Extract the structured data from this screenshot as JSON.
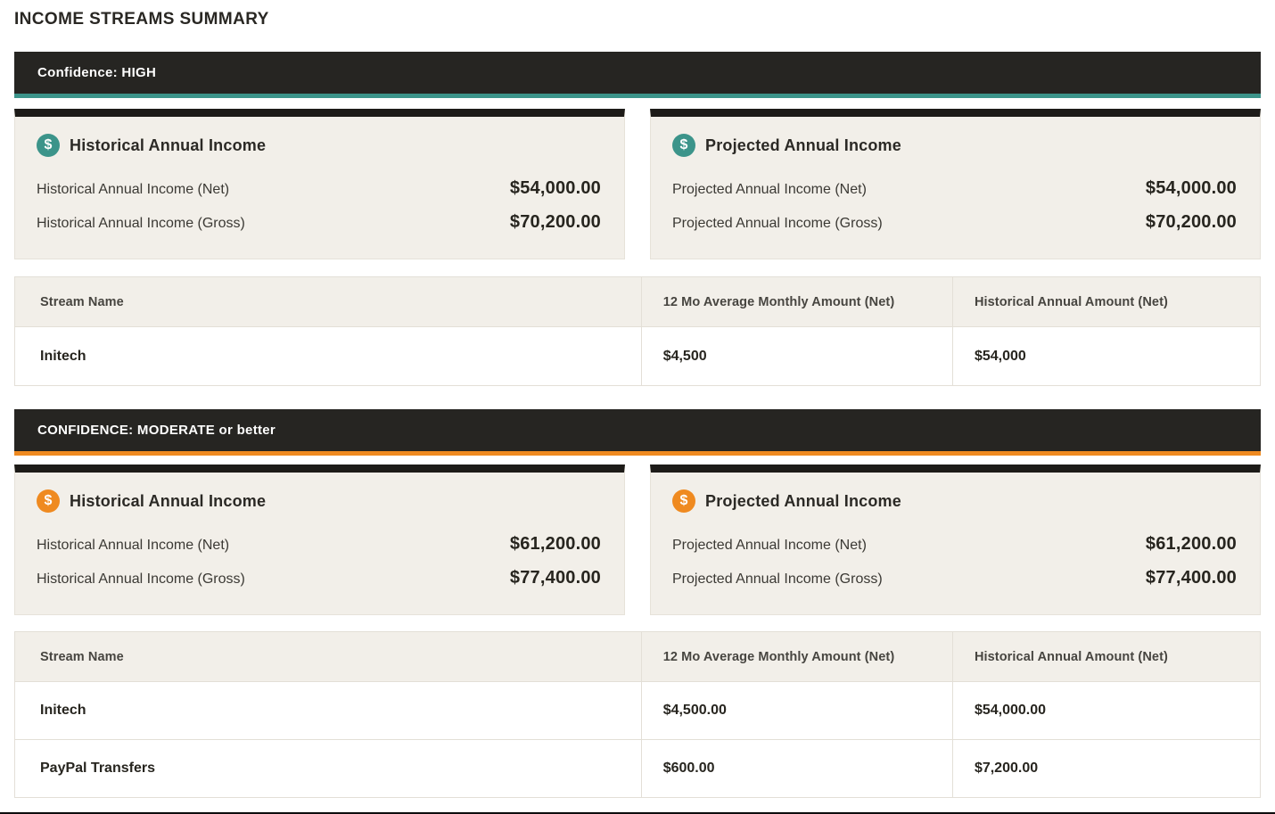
{
  "page": {
    "title": "INCOME STREAMS SUMMARY"
  },
  "icons": {
    "dollar_glyph": "$"
  },
  "colors": {
    "high_accent": "#3c948a",
    "moderate_accent": "#ef8a20",
    "banner_bg": "#262522",
    "card_bg": "#f2efe9",
    "card_top_strip": "#1d1b18",
    "bottom_bar": "#0d0d0d"
  },
  "sections": [
    {
      "confidence_label": "Confidence: HIGH",
      "accent_color": "#3c948a",
      "cards": [
        {
          "title": "Historical Annual Income",
          "rows": [
            {
              "label": "Historical Annual Income (Net)",
              "value": "$54,000.00"
            },
            {
              "label": "Historical Annual Income (Gross)",
              "value": "$70,200.00"
            }
          ]
        },
        {
          "title": "Projected Annual Income",
          "rows": [
            {
              "label": "Projected Annual Income (Net)",
              "value": "$54,000.00"
            },
            {
              "label": "Projected Annual Income (Gross)",
              "value": "$70,200.00"
            }
          ]
        }
      ],
      "table": {
        "headers": [
          "Stream Name",
          "12 Mo Average Monthly Amount (Net)",
          "Historical Annual Amount (Net)"
        ],
        "rows": [
          [
            "Initech",
            "$4,500",
            "$54,000"
          ]
        ]
      }
    },
    {
      "confidence_label": "CONFIDENCE: MODERATE or better",
      "accent_color": "#ef8a20",
      "cards": [
        {
          "title": "Historical Annual Income",
          "rows": [
            {
              "label": "Historical Annual Income (Net)",
              "value": "$61,200.00"
            },
            {
              "label": "Historical Annual Income (Gross)",
              "value": "$77,400.00"
            }
          ]
        },
        {
          "title": "Projected Annual Income",
          "rows": [
            {
              "label": "Projected Annual Income (Net)",
              "value": "$61,200.00"
            },
            {
              "label": "Projected Annual Income (Gross)",
              "value": "$77,400.00"
            }
          ]
        }
      ],
      "table": {
        "headers": [
          "Stream Name",
          "12 Mo Average Monthly Amount (Net)",
          "Historical Annual Amount (Net)"
        ],
        "rows": [
          [
            "Initech",
            "$4,500.00",
            "$54,000.00"
          ],
          [
            "PayPal Transfers",
            "$600.00",
            "$7,200.00"
          ]
        ]
      }
    }
  ]
}
